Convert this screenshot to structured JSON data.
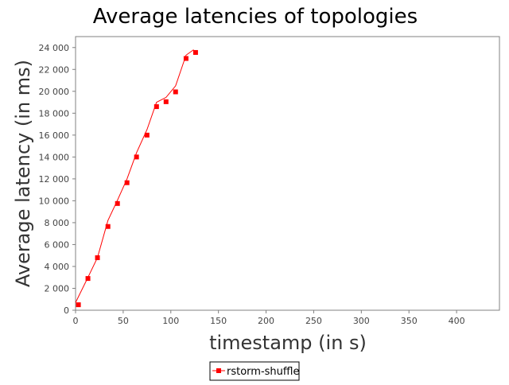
{
  "chart_data": {
    "type": "line",
    "title": "Average latencies of topologies",
    "xlabel": "timestamp (in s)",
    "ylabel": "Average latency (in ms)",
    "xlim": [
      0,
      445
    ],
    "ylim": [
      0,
      25000
    ],
    "xticks": [
      0,
      50,
      100,
      150,
      200,
      250,
      300,
      350,
      400
    ],
    "yticks": [
      0,
      2000,
      4000,
      6000,
      8000,
      10000,
      12000,
      14000,
      16000,
      18000,
      20000,
      22000,
      24000
    ],
    "xtick_labels": [
      "0",
      "50",
      "100",
      "150",
      "200",
      "250",
      "300",
      "350",
      "400"
    ],
    "ytick_labels": [
      "0",
      "2 000",
      "4 000",
      "6 000",
      "8 000",
      "10 000",
      "12 000",
      "14 000",
      "16 000",
      "18 000",
      "20 000",
      "22 000",
      "24 000"
    ],
    "grid": false,
    "legend_position": "bottom-center",
    "series": [
      {
        "name": "rstorm-shuffle",
        "color": "#ff0000",
        "marker": "square",
        "points": [
          [
            3,
            500
          ],
          [
            13,
            2900
          ],
          [
            23,
            4800
          ],
          [
            34,
            7650
          ],
          [
            44,
            9750
          ],
          [
            54,
            11650
          ],
          [
            64,
            14000
          ],
          [
            75,
            16000
          ],
          [
            85,
            18600
          ],
          [
            95,
            19050
          ],
          [
            105,
            19950
          ],
          [
            116,
            23000
          ],
          [
            126,
            23550
          ]
        ],
        "line": [
          [
            0,
            700
          ],
          [
            13,
            3000
          ],
          [
            23,
            4800
          ],
          [
            34,
            8200
          ],
          [
            44,
            10050
          ],
          [
            54,
            12000
          ],
          [
            64,
            14400
          ],
          [
            75,
            16500
          ],
          [
            85,
            19000
          ],
          [
            95,
            19450
          ],
          [
            105,
            20500
          ],
          [
            116,
            23300
          ],
          [
            124,
            23800
          ]
        ]
      }
    ]
  }
}
